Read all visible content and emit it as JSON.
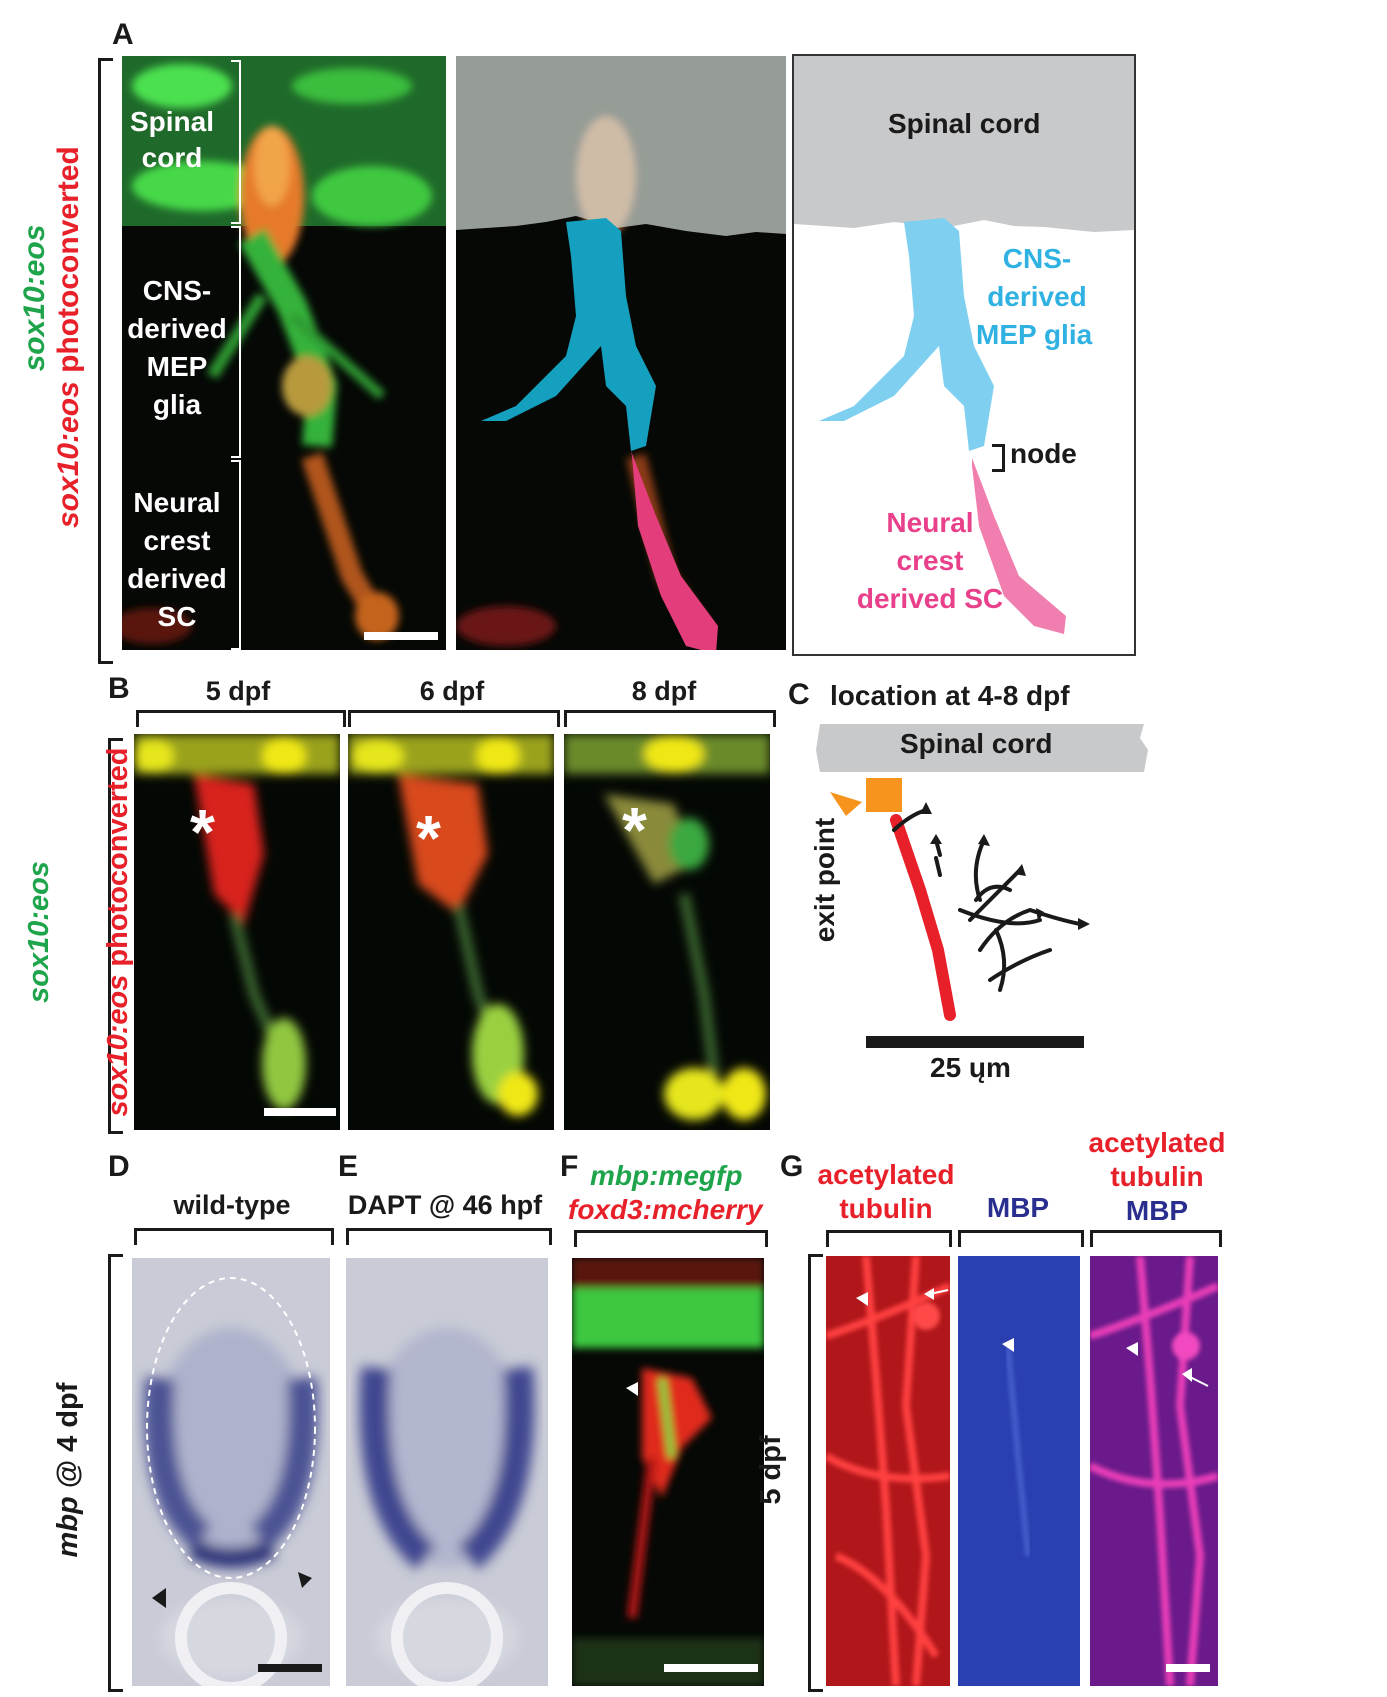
{
  "panel_letters": {
    "A": "A",
    "B": "B",
    "C": "C",
    "D": "D",
    "E": "E",
    "F": "F",
    "G": "G"
  },
  "panel_a": {
    "side_label_green": "sox10:eos",
    "side_label_red_italic": "sox10:eos",
    "side_label_red_rest": " photoconverted",
    "region_spinal_1": "Spinal",
    "region_spinal_2": "cord",
    "region_cns_1": "CNS-",
    "region_cns_2": "derived",
    "region_cns_3": "MEP",
    "region_cns_4": "glia",
    "region_nc_1": "Neural",
    "region_nc_2": "crest",
    "region_nc_3": "derived",
    "region_nc_4": "SC",
    "diagram_spinal": "Spinal cord",
    "diagram_cns_1": "CNS-",
    "diagram_cns_2": "derived",
    "diagram_cns_3": "MEP glia",
    "diagram_node": "node",
    "diagram_nc_1": "Neural",
    "diagram_nc_2": "crest",
    "diagram_nc_3": "derived SC",
    "colors": {
      "cns": "#7fd0f0",
      "nc": "#f07fb0",
      "spinal": "#c8c9cb"
    }
  },
  "panel_b": {
    "time_1": "5 dpf",
    "time_2": "6 dpf",
    "time_3": "8 dpf",
    "side_label_green": "sox10:eos",
    "side_label_red_italic": "sox10:eos",
    "side_label_red_rest": " photoconverted",
    "star": "*"
  },
  "panel_c": {
    "title": "location at 4-8 dpf",
    "spinal": "Spinal cord",
    "exit": "exit point",
    "scale": "25 ųm"
  },
  "panel_d": {
    "header": "wild-type",
    "side_italic": "mbp",
    "side_rest": " @ 4 dpf"
  },
  "panel_e": {
    "header": "DAPT @ 46 hpf"
  },
  "panel_f": {
    "line1": "mbp:megfp",
    "line2": "foxd3:mcherry"
  },
  "panel_g": {
    "h1_1": "acetylated",
    "h1_2": "tubulin",
    "h2": "MBP",
    "h3_1": "acetylated",
    "h3_2": "tubulin",
    "h3_3": "MBP",
    "side": "5 dpf"
  }
}
